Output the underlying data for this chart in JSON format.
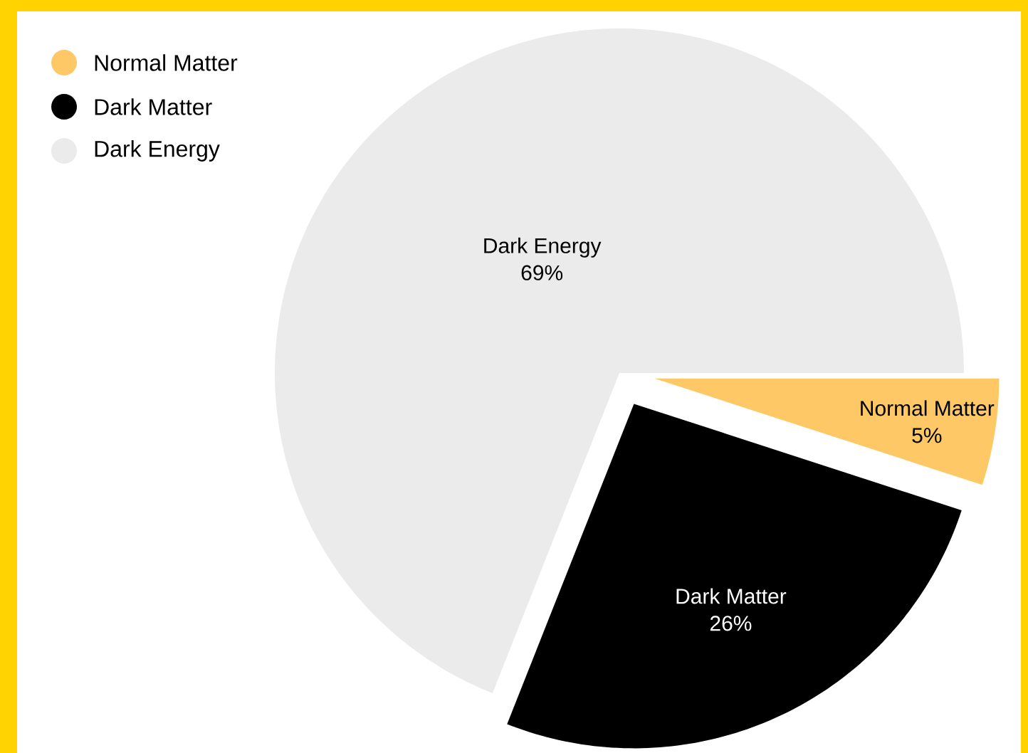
{
  "chart_data": {
    "type": "pie",
    "categories": [
      "Normal Matter",
      "Dark Matter",
      "Dark Energy"
    ],
    "values": [
      5,
      26,
      69
    ],
    "colors": [
      "#fdc865",
      "#000000",
      "#ebebeb"
    ],
    "value_labels": [
      "5%",
      "26%",
      "69%"
    ],
    "legend": "top left"
  }
}
